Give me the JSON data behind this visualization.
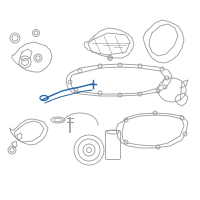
{
  "background_color": "#ffffff",
  "line_color": "#999999",
  "highlight_color": "#2266aa",
  "figsize": [
    2.0,
    2.0
  ],
  "dpi": 100
}
